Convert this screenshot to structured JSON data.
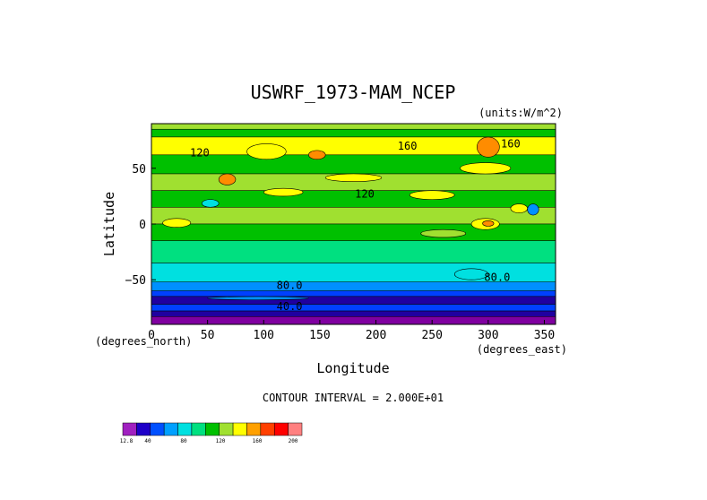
{
  "chart_data": {
    "type": "heatmap",
    "title": "USWRF_1973-MAM_NCEP",
    "units_note": "(units:W/m^2)",
    "xlabel": "Longitude",
    "ylabel": "Latitude",
    "x_unit_note": "(degrees_east)",
    "y_unit_note": "(degrees_north)",
    "xlim": [
      0,
      360
    ],
    "ylim": [
      -90,
      90
    ],
    "x_ticks": [
      0,
      50,
      100,
      150,
      200,
      250,
      300,
      350
    ],
    "y_ticks": [
      50,
      0,
      -50
    ],
    "contour_interval_text": "CONTOUR INTERVAL = 2.000E+01",
    "contour_labels": [
      {
        "text": "120",
        "lon": 43,
        "lat": 64
      },
      {
        "text": "160",
        "lon": 228,
        "lat": 70
      },
      {
        "text": "160",
        "lon": 320,
        "lat": 72
      },
      {
        "text": "120",
        "lon": 190,
        "lat": 27
      },
      {
        "text": "80.0",
        "lon": 123,
        "lat": -55
      },
      {
        "text": "80.0",
        "lon": 308,
        "lat": -48
      },
      {
        "text": "40.0",
        "lon": 123,
        "lat": -74
      }
    ],
    "latitude_bands": [
      {
        "lat_top": 90,
        "lat_bottom": 85,
        "value": 140
      },
      {
        "lat_top": 85,
        "lat_bottom": 78,
        "value": 120
      },
      {
        "lat_top": 78,
        "lat_bottom": 62,
        "value": 160
      },
      {
        "lat_top": 62,
        "lat_bottom": 45,
        "value": 120
      },
      {
        "lat_top": 45,
        "lat_bottom": 30,
        "value": 140
      },
      {
        "lat_top": 30,
        "lat_bottom": 15,
        "value": 120
      },
      {
        "lat_top": 15,
        "lat_bottom": 0,
        "value": 140
      },
      {
        "lat_top": 0,
        "lat_bottom": -15,
        "value": 120
      },
      {
        "lat_top": -15,
        "lat_bottom": -35,
        "value": 100
      },
      {
        "lat_top": -35,
        "lat_bottom": -52,
        "value": 80
      },
      {
        "lat_top": -52,
        "lat_bottom": -60,
        "value": 60
      },
      {
        "lat_top": -60,
        "lat_bottom": -65,
        "value": 40
      },
      {
        "lat_top": -65,
        "lat_bottom": -72,
        "value": 30
      },
      {
        "lat_top": -72,
        "lat_bottom": -78,
        "value": 40
      },
      {
        "lat_top": -78,
        "lat_bottom": -83,
        "value": 20
      },
      {
        "lat_top": -83,
        "lat_bottom": -90,
        "value": 12.8
      }
    ],
    "patches": [
      {
        "lon": [
          290,
          310
        ],
        "lat": [
          60,
          78
        ],
        "value": 180
      },
      {
        "lon": [
          140,
          155
        ],
        "lat": [
          58,
          66
        ],
        "value": 180
      },
      {
        "lon": [
          85,
          120
        ],
        "lat": [
          58,
          72
        ],
        "value": 160
      },
      {
        "lon": [
          60,
          75
        ],
        "lat": [
          35,
          45
        ],
        "value": 180
      },
      {
        "lon": [
          100,
          135
        ],
        "lat": [
          25,
          32
        ],
        "value": 160
      },
      {
        "lon": [
          155,
          205
        ],
        "lat": [
          38,
          45
        ],
        "value": 160
      },
      {
        "lon": [
          275,
          320
        ],
        "lat": [
          45,
          55
        ],
        "value": 160
      },
      {
        "lon": [
          230,
          270
        ],
        "lat": [
          22,
          30
        ],
        "value": 160
      },
      {
        "lon": [
          45,
          60
        ],
        "lat": [
          15,
          22
        ],
        "value": 80
      },
      {
        "lon": [
          10,
          35
        ],
        "lat": [
          -3,
          5
        ],
        "value": 160
      },
      {
        "lon": [
          285,
          310
        ],
        "lat": [
          -5,
          5
        ],
        "value": 160
      },
      {
        "lon": [
          295,
          305
        ],
        "lat": [
          -2,
          3
        ],
        "value": 180
      },
      {
        "lon": [
          320,
          335
        ],
        "lat": [
          10,
          18
        ],
        "value": 160
      },
      {
        "lon": [
          335,
          345
        ],
        "lat": [
          8,
          18
        ],
        "value": 60
      },
      {
        "lon": [
          240,
          280
        ],
        "lat": [
          -12,
          -5
        ],
        "value": 140
      },
      {
        "lon": [
          270,
          300
        ],
        "lat": [
          -40,
          -50
        ],
        "value": 80
      },
      {
        "lon": [
          50,
          140
        ],
        "lat": [
          -65,
          -68
        ],
        "value": 60
      }
    ],
    "colorbar": {
      "colors": [
        "#a020c0",
        "#1e00c8",
        "#0050ff",
        "#00a0ff",
        "#00e0e0",
        "#00e080",
        "#00c000",
        "#a0e030",
        "#ffff00",
        "#ffa000",
        "#ff4000",
        "#ff0000",
        "#ff8080"
      ],
      "tick_labels": [
        "12.8",
        "40",
        "80",
        "120",
        "160",
        "200"
      ]
    },
    "levels": [
      0,
      20,
      40,
      60,
      80,
      100,
      120,
      140,
      160,
      180,
      200,
      220
    ],
    "level_colors": [
      "#8000a0",
      "#2000a0",
      "#0040ff",
      "#0090ff",
      "#00e0e0",
      "#00e080",
      "#00c000",
      "#a0e030",
      "#ffff00",
      "#ff8c00",
      "#ff2000",
      "#ff8080"
    ]
  }
}
